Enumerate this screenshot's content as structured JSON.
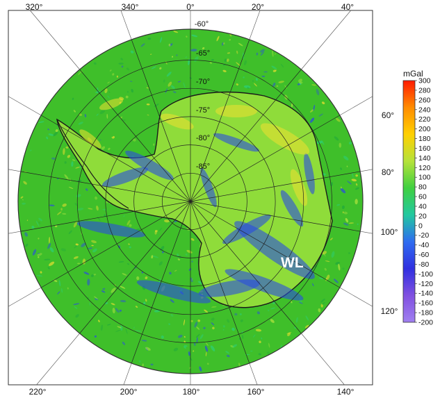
{
  "map": {
    "region_label": "WL",
    "top_longitudes": [
      "320°",
      "340°",
      "0°",
      "20°",
      "40°"
    ],
    "bottom_longitudes": [
      "220°",
      "200°",
      "180°",
      "160°",
      "140°"
    ],
    "right_longitudes": [
      "60°",
      "80°",
      "100°",
      "120°"
    ],
    "latitudes": [
      "-60°",
      "-65°",
      "-70°",
      "-75°",
      "-80°",
      "-85°"
    ],
    "colors": {
      "ocean": "#3fbf2a",
      "land": "#8fdc3a",
      "high_anomaly": "#f0e030",
      "low_anomaly": "#2a4de0",
      "coastline": "#1a1a1a",
      "graticule": "#222222"
    }
  },
  "colorbar": {
    "unit": "mGal",
    "min": -200,
    "max": 300,
    "ticks": [
      "300",
      "280",
      "260",
      "240",
      "220",
      "200",
      "180",
      "160",
      "140",
      "120",
      "100",
      "80",
      "60",
      "40",
      "20",
      "0",
      "-20",
      "-40",
      "-60",
      "-80",
      "-100",
      "-120",
      "-140",
      "-160",
      "-180",
      "-200"
    ],
    "colors": [
      "#ff1a00",
      "#ff8c00",
      "#ffd000",
      "#b6e23a",
      "#40d040",
      "#22c8a0",
      "#2f6cf0",
      "#3030e0",
      "#8050e0",
      "#a080f0"
    ]
  }
}
